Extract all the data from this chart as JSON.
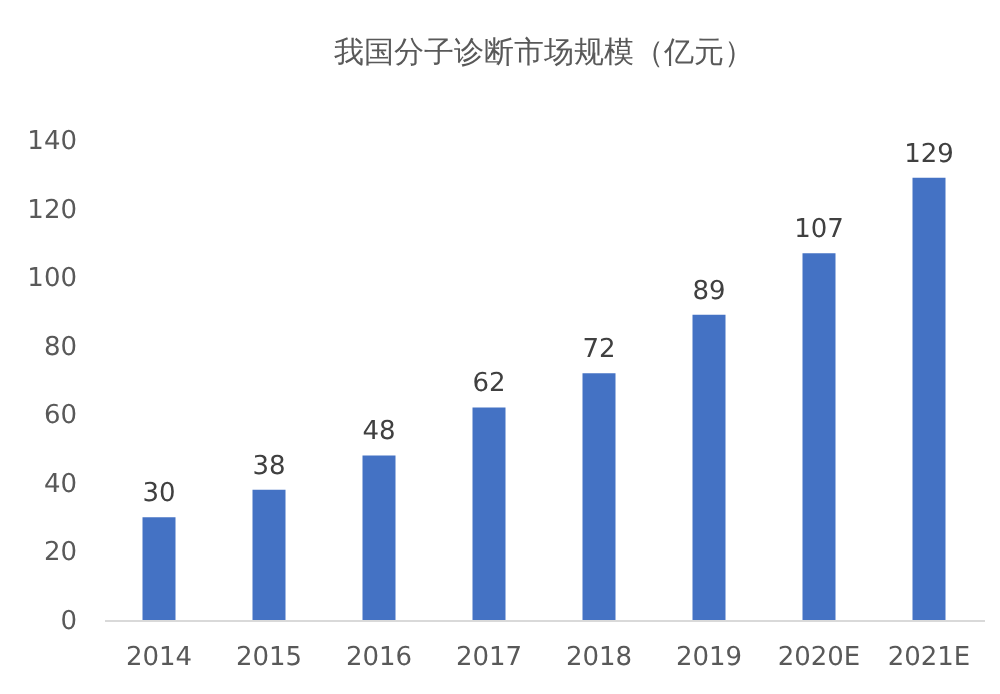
{
  "chart_data": {
    "type": "bar",
    "title": "我国分子诊断市场规模（亿元）",
    "categories": [
      "2014",
      "2015",
      "2016",
      "2017",
      "2018",
      "2019",
      "2020E",
      "2021E"
    ],
    "values": [
      30,
      38,
      48,
      62,
      72,
      89,
      107,
      129
    ],
    "color": "#4472c4",
    "ylim": [
      0,
      140
    ],
    "yticks": [
      0,
      20,
      40,
      60,
      80,
      100,
      120,
      140
    ],
    "grid": false,
    "data_labels": true
  }
}
